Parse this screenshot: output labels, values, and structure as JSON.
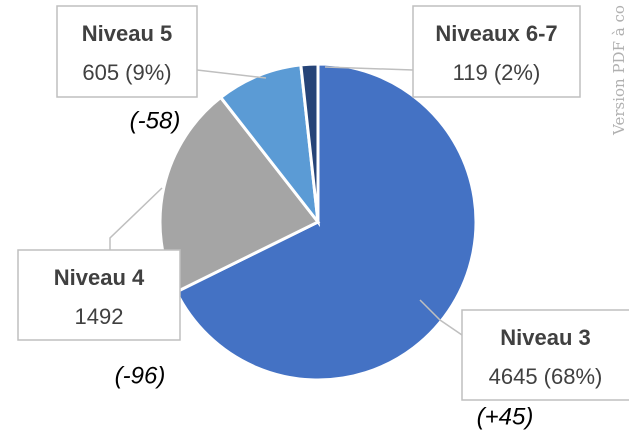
{
  "chart_data": {
    "type": "pie",
    "categories": [
      "Niveau 3",
      "Niveau 4",
      "Niveau 5",
      "Niveaux 6-7"
    ],
    "values": [
      4645,
      1492,
      605,
      119
    ],
    "value_labels": [
      "4645 (68%)",
      "1492",
      "605 (9%)",
      "119 (2%)"
    ],
    "colors": [
      "#4472c4",
      "#a5a5a5",
      "#5b9bd5",
      "#264478"
    ],
    "annotations": [
      "(+45)",
      "(-96)",
      "(-58)"
    ],
    "watermark": "Version PDF à co"
  }
}
